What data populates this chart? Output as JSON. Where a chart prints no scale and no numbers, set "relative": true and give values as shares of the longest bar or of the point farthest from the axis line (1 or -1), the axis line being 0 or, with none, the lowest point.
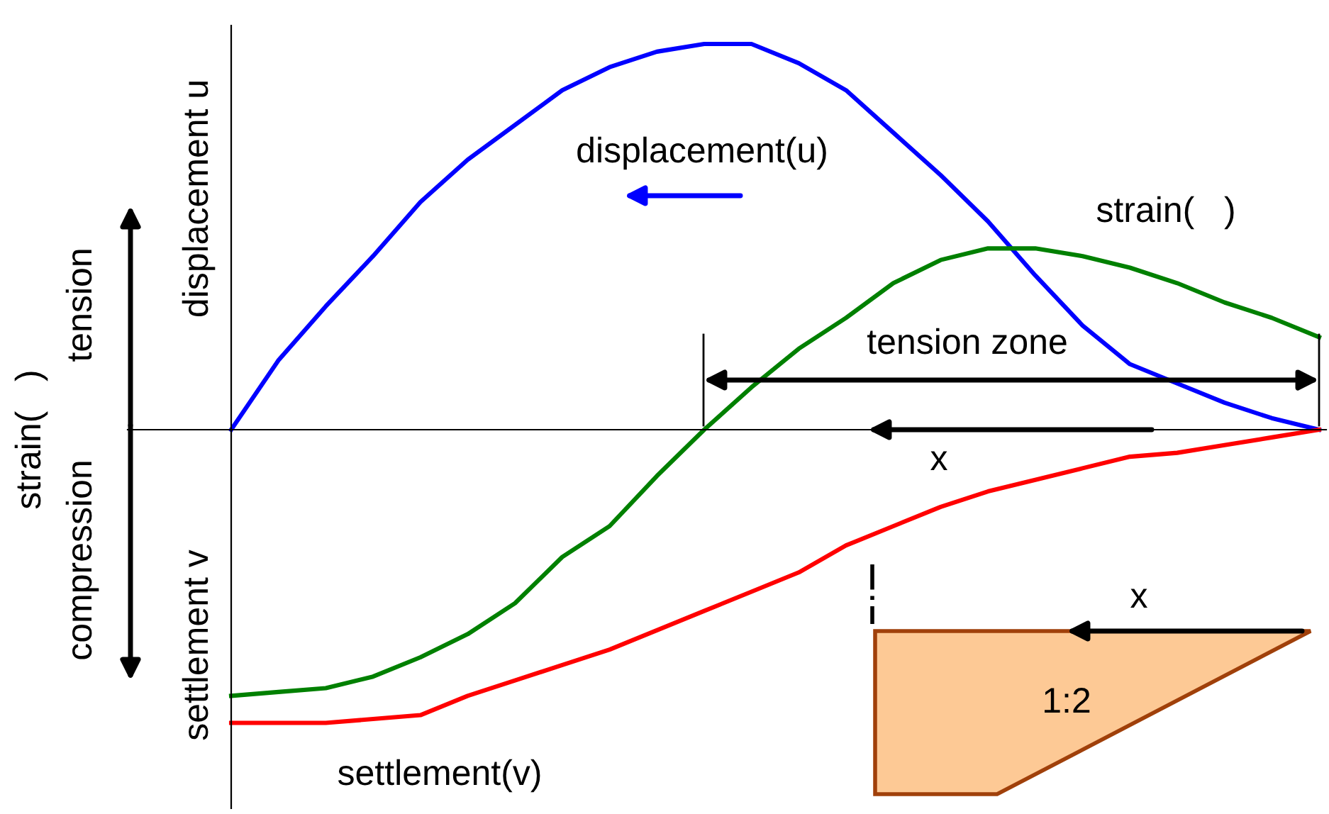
{
  "chart_data": {
    "type": "line",
    "relative": true,
    "ylabel": "strain(   )",
    "categories": [
      null,
      null,
      null,
      null,
      null,
      null,
      null,
      null,
      null,
      null,
      null,
      null,
      null,
      null,
      null,
      null,
      null,
      null,
      null,
      null,
      null,
      null,
      null,
      null
    ],
    "series": [
      {
        "name": "displacement(u)",
        "color": "#0000ff",
        "values": [
          0,
          0.18,
          0.32,
          0.45,
          0.59,
          0.7,
          0.79,
          0.88,
          0.94,
          0.98,
          1.0,
          1.0,
          0.95,
          0.88,
          0.77,
          0.66,
          0.54,
          0.4,
          0.27,
          0.17,
          0.12,
          0.07,
          0.03,
          0
        ]
      },
      {
        "name": "strain(   )",
        "color": "#008000",
        "values": [
          -0.69,
          -0.68,
          -0.67,
          -0.64,
          -0.59,
          -0.53,
          -0.45,
          -0.33,
          -0.25,
          -0.12,
          0.0,
          0.11,
          0.21,
          0.29,
          0.38,
          0.44,
          0.47,
          0.47,
          0.45,
          0.42,
          0.38,
          0.33,
          0.29,
          0.24
        ]
      },
      {
        "name": "settlement(v)",
        "color": "#ff0000",
        "values": [
          -0.76,
          -0.76,
          -0.76,
          -0.75,
          -0.74,
          -0.69,
          -0.65,
          -0.61,
          -0.57,
          -0.52,
          -0.47,
          -0.42,
          -0.37,
          -0.3,
          -0.25,
          -0.2,
          -0.16,
          -0.13,
          -0.1,
          -0.07,
          -0.06,
          -0.04,
          -0.02,
          0
        ]
      }
    ],
    "annotations": [
      "displacement u",
      "settlement v",
      "tension",
      "compression",
      "tension zone",
      "x",
      "x",
      "1:2"
    ],
    "grid": false,
    "legend": false,
    "marker": "none",
    "line_style": "solid"
  }
}
